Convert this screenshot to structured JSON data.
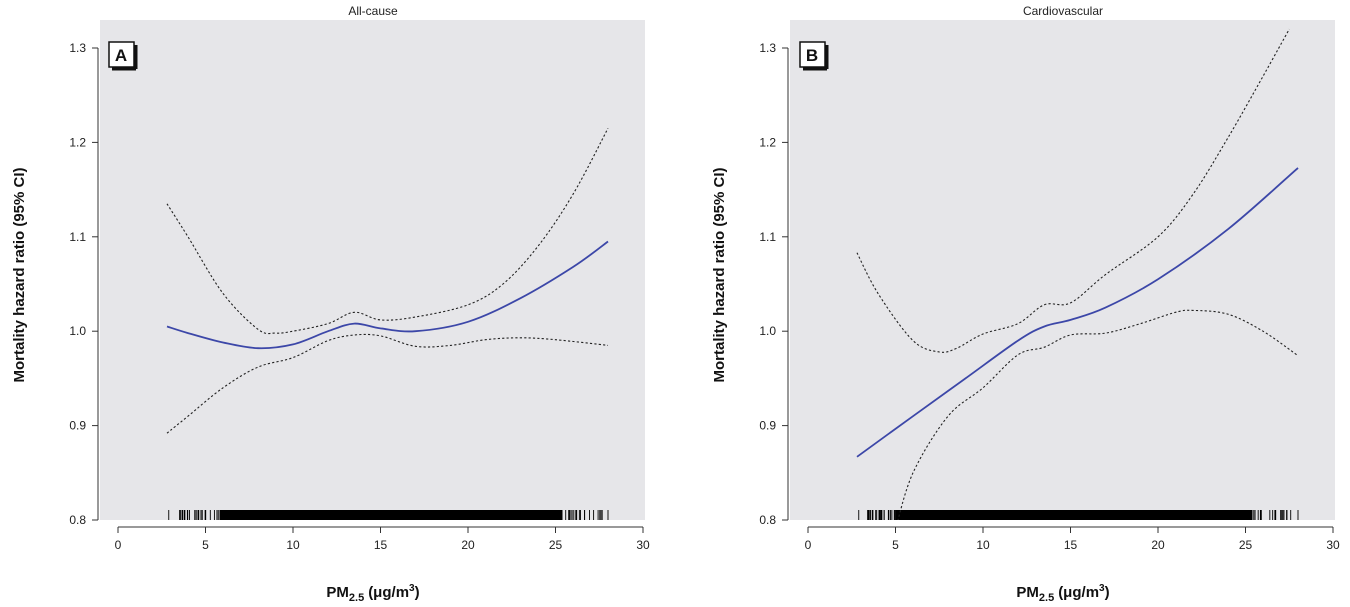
{
  "colors": {
    "plot_bg": "#e6e6e9",
    "fit": "#3c47a8",
    "ci": "#222222"
  },
  "chart_data": [
    {
      "type": "line",
      "panel_letter": "A",
      "title": "All-cause",
      "ylabel": "Mortality hazard ratio (95% CI)",
      "xlabel_main": "PM",
      "xlabel_sub": "2.5",
      "xlabel_units": "(μg/m",
      "xlabel_sup": "3",
      "xlabel_close": ")",
      "xlim": [
        0,
        30
      ],
      "ylim": [
        0.8,
        1.3
      ],
      "x_ticks": [
        "0",
        "5",
        "10",
        "15",
        "20",
        "25",
        "30"
      ],
      "y_ticks": [
        "0.8",
        "0.9",
        "1.0",
        "1.1",
        "1.2",
        "1.3"
      ],
      "legend": "none",
      "grid": false,
      "series": [
        {
          "role": "estimate",
          "x": [
            2.8,
            4,
            6,
            8,
            10,
            12,
            13.5,
            15,
            17,
            20,
            23,
            26,
            28
          ],
          "y": [
            1.005,
            0.998,
            0.988,
            0.982,
            0.986,
            1.0,
            1.008,
            1.003,
            1.0,
            1.01,
            1.035,
            1.068,
            1.095
          ]
        },
        {
          "role": "upper",
          "x": [
            2.8,
            4,
            6,
            8,
            9,
            10,
            12,
            13.5,
            15,
            17,
            20,
            22,
            24,
            26,
            28
          ],
          "y": [
            1.135,
            1.1,
            1.04,
            1.002,
            0.998,
            1.0,
            1.008,
            1.02,
            1.012,
            1.015,
            1.028,
            1.05,
            1.09,
            1.145,
            1.215
          ]
        },
        {
          "role": "lower",
          "x": [
            2.8,
            4,
            6,
            8,
            10,
            12,
            13.5,
            15,
            17,
            19,
            21,
            23,
            25,
            28
          ],
          "y": [
            0.892,
            0.91,
            0.94,
            0.962,
            0.972,
            0.99,
            0.996,
            0.995,
            0.984,
            0.985,
            0.991,
            0.993,
            0.991,
            0.985
          ]
        }
      ],
      "rug": {
        "min": 2.9,
        "max": 28.0,
        "dense_from": 5.8,
        "dense_to": 25.4
      }
    },
    {
      "type": "line",
      "panel_letter": "B",
      "title": "Cardiovascular",
      "ylabel": "Mortality hazard ratio (95% CI)",
      "xlabel_main": "PM",
      "xlabel_sub": "2.5",
      "xlabel_units": "(μg/m",
      "xlabel_sup": "3",
      "xlabel_close": ")",
      "xlim": [
        0,
        30
      ],
      "ylim": [
        0.8,
        1.3
      ],
      "x_ticks": [
        "0",
        "5",
        "10",
        "15",
        "20",
        "25",
        "30"
      ],
      "y_ticks": [
        "0.8",
        "0.9",
        "1.0",
        "1.1",
        "1.2",
        "1.3"
      ],
      "legend": "none",
      "grid": false,
      "series": [
        {
          "role": "estimate",
          "x": [
            2.8,
            6,
            9,
            12,
            13.5,
            15,
            17,
            20,
            24,
            28
          ],
          "y": [
            0.867,
            0.91,
            0.95,
            0.99,
            1.005,
            1.012,
            1.025,
            1.055,
            1.108,
            1.173
          ]
        },
        {
          "role": "upper",
          "x": [
            2.8,
            4,
            6,
            7.5,
            8.5,
            10,
            12,
            13.5,
            15,
            17,
            20,
            22,
            24,
            26,
            27.5
          ],
          "y": [
            1.083,
            1.04,
            0.99,
            0.978,
            0.982,
            0.997,
            1.008,
            1.028,
            1.03,
            1.06,
            1.1,
            1.145,
            1.205,
            1.27,
            1.32
          ]
        },
        {
          "role": "lower",
          "x": [
            5.0,
            6,
            8,
            10,
            12,
            13.5,
            15,
            17,
            19,
            21,
            22,
            24,
            26,
            28
          ],
          "y": [
            0.79,
            0.85,
            0.91,
            0.94,
            0.975,
            0.983,
            0.996,
            0.998,
            1.008,
            1.02,
            1.022,
            1.018,
            1.0,
            0.974
          ]
        }
      ],
      "rug": {
        "min": 2.9,
        "max": 28.0,
        "dense_from": 5.0,
        "dense_to": 25.4
      }
    }
  ]
}
